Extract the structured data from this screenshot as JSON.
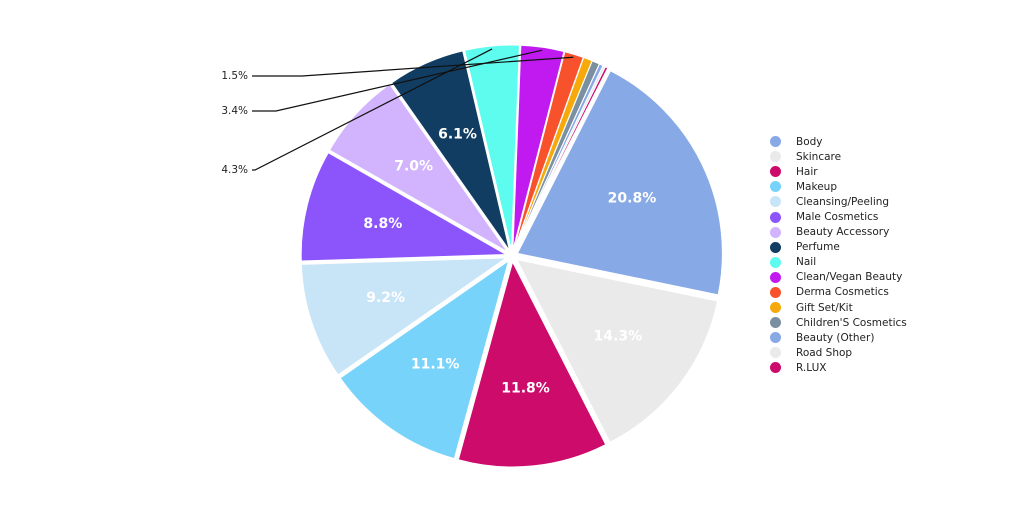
{
  "chart_data": {
    "type": "pie",
    "title": "",
    "start_angle_deg": -63,
    "direction": "clockwise",
    "slices": [
      {
        "name": "Body",
        "value": 20.8,
        "label": "20.8%",
        "color": "#87A9E6",
        "label_color": "#ffffff"
      },
      {
        "name": "Skincare",
        "value": 14.3,
        "label": "14.3%",
        "color": "#EAEAEA",
        "label_color": "#ffffff"
      },
      {
        "name": "Hair",
        "value": 11.8,
        "label": "11.8%",
        "color": "#CC0B6A",
        "label_color": "#ffffff"
      },
      {
        "name": "Makeup",
        "value": 11.1,
        "label": "11.1%",
        "color": "#78D3FA",
        "label_color": "#ffffff"
      },
      {
        "name": "Cleansing/Peeling",
        "value": 9.2,
        "label": "9.2%",
        "color": "#C8E5F8",
        "label_color": "#ffffff"
      },
      {
        "name": "Male Cosmetics",
        "value": 8.8,
        "label": "8.8%",
        "color": "#8C55FC",
        "label_color": "#ffffff"
      },
      {
        "name": "Beauty Accessory",
        "value": 7.0,
        "label": "7.0%",
        "color": "#D1B4FD",
        "label_color": "#ffffff"
      },
      {
        "name": "Perfume",
        "value": 6.1,
        "label": "6.1%",
        "color": "#123D62",
        "label_color": "#ffffff"
      },
      {
        "name": "Nail",
        "value": 4.3,
        "label": "4.3%",
        "color": "#5EFCEE",
        "label_color": "#222222"
      },
      {
        "name": "Clean/Vegan Beauty",
        "value": 3.4,
        "label": "3.4%",
        "color": "#C11AF0",
        "label_color": "#222222"
      },
      {
        "name": "Derma Cosmetics",
        "value": 1.5,
        "label": "1.5%",
        "color": "#F8522C",
        "label_color": "#222222"
      },
      {
        "name": "Gift Set/Kit",
        "value": 0.7,
        "label": "",
        "color": "#F5A90A",
        "label_color": "#222222"
      },
      {
        "name": "Children'S Cosmetics",
        "value": 0.6,
        "label": "",
        "color": "#7A8FA0",
        "label_color": "#222222"
      },
      {
        "name": "Beauty (Other)",
        "value": 0.3,
        "label": "",
        "color": "#87A9E6",
        "label_color": "#222222"
      },
      {
        "name": "Road Shop",
        "value": 0.2,
        "label": "",
        "color": "#EAEAEA",
        "label_color": "#222222"
      },
      {
        "name": "R.LUX",
        "value": 0.2,
        "label": "",
        "color": "#CC0B6A",
        "label_color": "#222222"
      }
    ],
    "legend_position": "right"
  }
}
